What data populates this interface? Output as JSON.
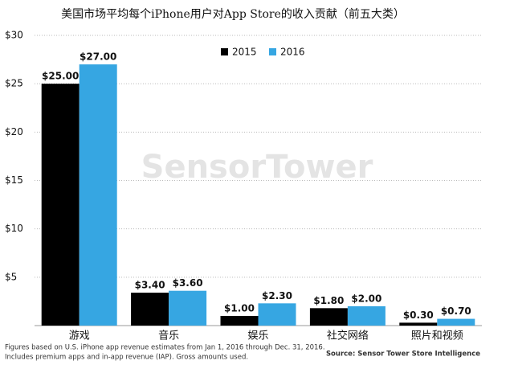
{
  "chart_data": {
    "type": "bar",
    "title": "美国市场平均每个iPhone用户对App Store的收入贡献（前五大类）",
    "categories": [
      "游戏",
      "音乐",
      "娱乐",
      "社交网络",
      "照片和视频"
    ],
    "series": [
      {
        "name": "2015",
        "color": "#000000",
        "values": [
          25,
          3.4,
          1,
          1.8,
          0.3
        ],
        "value_labels": [
          "$25.00",
          "$3.40",
          "$1.00",
          "$1.80",
          "$0.30"
        ]
      },
      {
        "name": "2016",
        "color": "#36a6e2",
        "values": [
          27,
          3.6,
          2.3,
          2,
          0.7
        ],
        "value_labels": [
          "$27.00",
          "$3.60",
          "$2.30",
          "$2.00",
          "$0.70"
        ]
      }
    ],
    "ylim": [
      0,
      30
    ],
    "yticks": [
      {
        "value": 5,
        "label": "$5"
      },
      {
        "value": 10,
        "label": "$10"
      },
      {
        "value": 15,
        "label": "$15"
      },
      {
        "value": 20,
        "label": "$20"
      },
      {
        "value": 25,
        "label": "$25"
      },
      {
        "value": 30,
        "label": "$30"
      }
    ],
    "grid": true,
    "legend": "top",
    "watermark": "SensorTower",
    "footnotes": [
      "Figures based on U.S. iPhone app revenue estimates from Jan 1, 2016 through Dec. 31, 2016.",
      "Includes premium apps and in-app revenue (IAP). Gross amounts used."
    ],
    "source": "Source: Sensor Tower Store Intelligence"
  }
}
